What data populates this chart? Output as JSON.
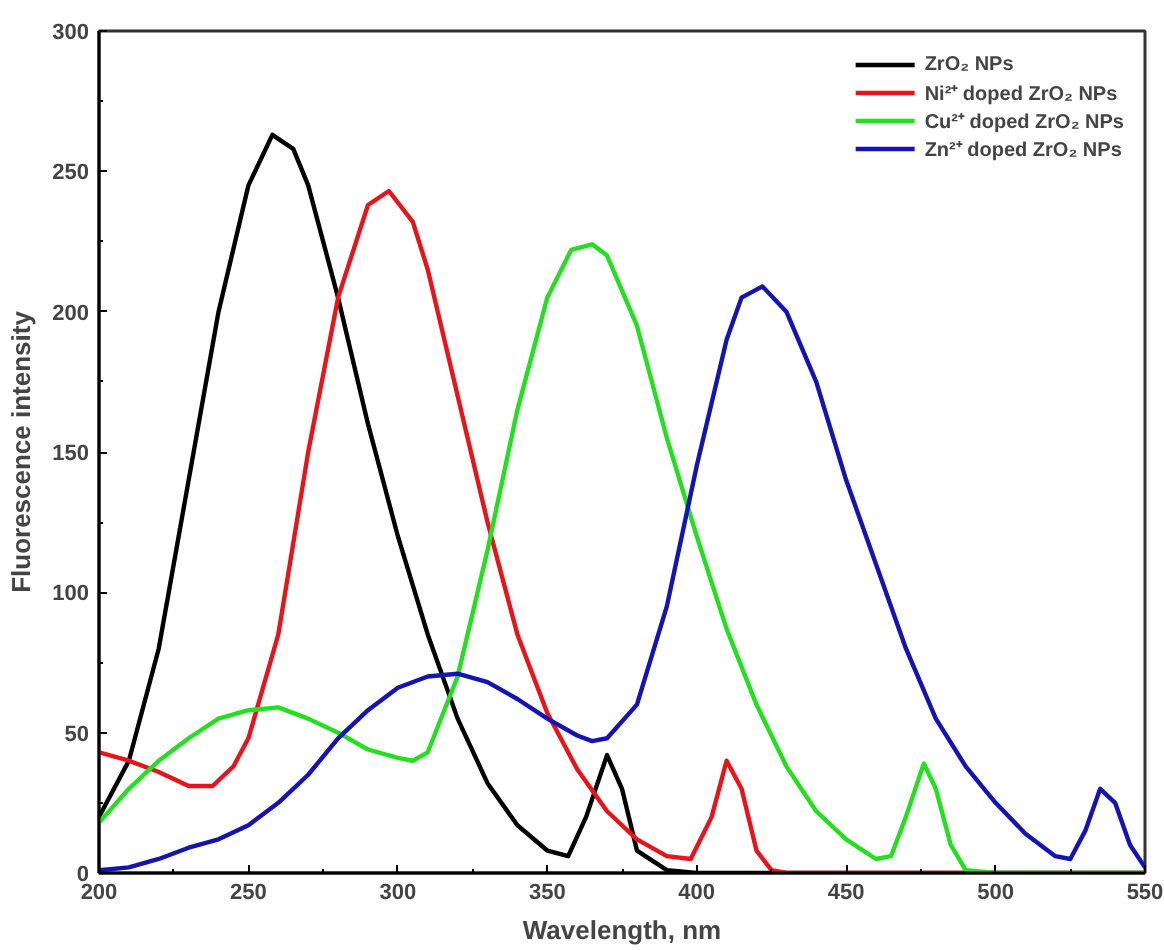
{
  "chart_data": {
    "type": "line",
    "xlabel": "Wavelength, nm",
    "ylabel": "Fluorescence intensity",
    "xlim": [
      200,
      550
    ],
    "ylim": [
      0,
      300
    ],
    "xticks": [
      200,
      250,
      300,
      350,
      400,
      450,
      500,
      550
    ],
    "yticks": [
      0,
      50,
      100,
      150,
      200,
      250,
      300
    ],
    "grid": false,
    "legend": "top right",
    "marker": "none",
    "line_style": "solid",
    "series": [
      {
        "name": "ZrO₂ NPs",
        "color": "#000000",
        "x": [
          200,
          210,
          220,
          230,
          240,
          250,
          258,
          265,
          270,
          280,
          290,
          300,
          310,
          320,
          330,
          340,
          350,
          357,
          363,
          370,
          375,
          380,
          390,
          400,
          550
        ],
        "values": [
          20,
          40,
          80,
          140,
          200,
          245,
          263,
          258,
          245,
          205,
          160,
          120,
          85,
          55,
          32,
          17,
          8,
          6,
          20,
          42,
          30,
          8,
          1,
          0,
          0
        ]
      },
      {
        "name": "Ni²⁺ doped ZrO₂ NPs",
        "color": "#e8141c",
        "x": [
          200,
          210,
          220,
          230,
          238,
          245,
          250,
          260,
          270,
          280,
          290,
          297,
          305,
          310,
          320,
          330,
          340,
          350,
          360,
          370,
          380,
          390,
          398,
          405,
          410,
          415,
          420,
          425,
          430,
          550
        ],
        "values": [
          43,
          40,
          36,
          31,
          31,
          38,
          48,
          85,
          150,
          205,
          238,
          243,
          232,
          215,
          170,
          125,
          85,
          57,
          37,
          22,
          12,
          6,
          5,
          20,
          40,
          30,
          8,
          1,
          0,
          0
        ]
      },
      {
        "name": "Cu²⁺ doped ZrO₂ NPs",
        "color": "#22e01e",
        "x": [
          200,
          210,
          220,
          230,
          240,
          250,
          260,
          270,
          280,
          290,
          300,
          305,
          310,
          320,
          330,
          340,
          350,
          358,
          365,
          370,
          380,
          390,
          400,
          410,
          420,
          430,
          440,
          450,
          460,
          465,
          470,
          476,
          480,
          485,
          490,
          500,
          550
        ],
        "values": [
          18,
          30,
          40,
          48,
          55,
          58,
          59,
          55,
          50,
          44,
          41,
          40,
          43,
          70,
          115,
          165,
          205,
          222,
          224,
          220,
          195,
          155,
          120,
          87,
          60,
          38,
          22,
          12,
          5,
          6,
          20,
          39,
          30,
          10,
          1,
          0,
          0
        ]
      },
      {
        "name": "Zn²⁺ doped ZrO₂ NPs",
        "color": "#1414b4",
        "x": [
          200,
          210,
          220,
          230,
          240,
          250,
          260,
          270,
          280,
          290,
          300,
          310,
          320,
          330,
          340,
          350,
          360,
          365,
          370,
          380,
          390,
          400,
          410,
          415,
          422,
          430,
          440,
          450,
          460,
          470,
          480,
          490,
          500,
          510,
          520,
          525,
          530,
          535,
          540,
          545,
          550
        ],
        "values": [
          1,
          2,
          5,
          9,
          12,
          17,
          25,
          35,
          48,
          58,
          66,
          70,
          71,
          68,
          62,
          55,
          49,
          47,
          48,
          60,
          95,
          145,
          190,
          205,
          209,
          200,
          175,
          140,
          110,
          80,
          55,
          38,
          25,
          14,
          6,
          5,
          15,
          30,
          25,
          10,
          2
        ]
      }
    ]
  }
}
